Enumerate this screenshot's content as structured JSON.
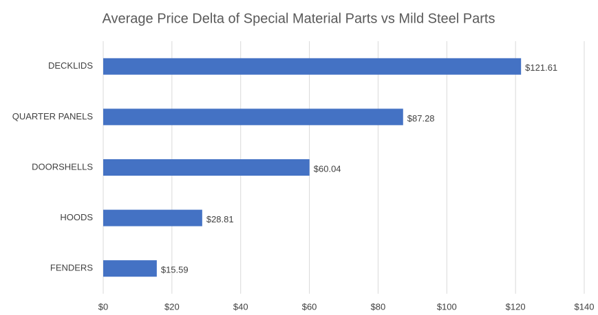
{
  "chart_data": {
    "type": "bar",
    "orientation": "horizontal",
    "title": "Average Price Delta of Special Material Parts vs Mild Steel Parts",
    "categories": [
      "DECKLIDS",
      "QUARTER PANELS",
      "DOORSHELLS",
      "HOODS",
      "FENDERS"
    ],
    "values": [
      121.61,
      87.28,
      60.04,
      28.81,
      15.59
    ],
    "value_labels": [
      "$121.61",
      "$87.28",
      "$60.04",
      "$28.81",
      "$15.59"
    ],
    "color": "#4472c4",
    "xlim": [
      0,
      140
    ],
    "xticks": [
      {
        "value": 0,
        "label": "$0"
      },
      {
        "value": 20,
        "label": "$20"
      },
      {
        "value": 40,
        "label": "$40"
      },
      {
        "value": 60,
        "label": "$60"
      },
      {
        "value": 80,
        "label": "$80"
      },
      {
        "value": 100,
        "label": "$100"
      },
      {
        "value": 120,
        "label": "$120"
      },
      {
        "value": 140,
        "label": "$140"
      }
    ],
    "grid": true
  }
}
